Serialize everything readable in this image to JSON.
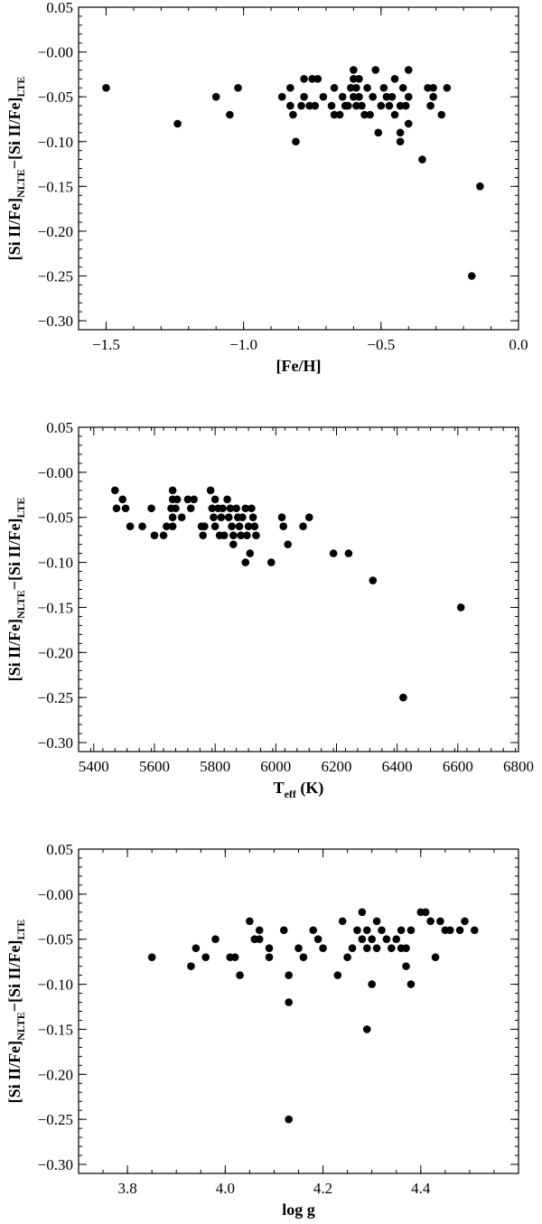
{
  "chart_data": [
    {
      "type": "scatter",
      "xlabel": "[Fe/H]",
      "ylabel": "[Si II/Fe]NLTE−[Si II/Fe]LTE",
      "xlim": [
        -1.6,
        0.0
      ],
      "ylim": [
        -0.31,
        0.05
      ],
      "x_major_ticks": [
        -1.5,
        -1.0,
        -0.5,
        0.0
      ],
      "x_tick_labels": [
        "−1.5",
        "−1.0",
        "−0.5",
        "0.0"
      ],
      "y_major_ticks": [
        0.05,
        0.0,
        -0.05,
        -0.1,
        -0.15,
        -0.2,
        -0.25,
        -0.3
      ],
      "y_tick_labels": [
        "0.05",
        "−0.00",
        "−0.05",
        "−0.10",
        "−0.15",
        "−0.20",
        "−0.25",
        "−0.30"
      ],
      "points": [
        [
          -1.5,
          -0.04
        ],
        [
          -1.24,
          -0.08
        ],
        [
          -1.1,
          -0.05
        ],
        [
          -1.05,
          -0.07
        ],
        [
          -1.02,
          -0.04
        ],
        [
          -0.86,
          -0.05
        ],
        [
          -0.83,
          -0.04
        ],
        [
          -0.83,
          -0.06
        ],
        [
          -0.82,
          -0.07
        ],
        [
          -0.81,
          -0.1
        ],
        [
          -0.79,
          -0.06
        ],
        [
          -0.78,
          -0.05
        ],
        [
          -0.78,
          -0.03
        ],
        [
          -0.76,
          -0.06
        ],
        [
          -0.75,
          -0.03
        ],
        [
          -0.74,
          -0.06
        ],
        [
          -0.73,
          -0.03
        ],
        [
          -0.71,
          -0.05
        ],
        [
          -0.68,
          -0.06
        ],
        [
          -0.67,
          -0.04
        ],
        [
          -0.67,
          -0.07
        ],
        [
          -0.65,
          -0.07
        ],
        [
          -0.64,
          -0.05
        ],
        [
          -0.63,
          -0.06
        ],
        [
          -0.62,
          -0.06
        ],
        [
          -0.61,
          -0.04
        ],
        [
          -0.6,
          -0.02
        ],
        [
          -0.6,
          -0.03
        ],
        [
          -0.6,
          -0.05
        ],
        [
          -0.59,
          -0.06
        ],
        [
          -0.59,
          -0.04
        ],
        [
          -0.58,
          -0.03
        ],
        [
          -0.58,
          -0.05
        ],
        [
          -0.57,
          -0.06
        ],
        [
          -0.56,
          -0.07
        ],
        [
          -0.55,
          -0.04
        ],
        [
          -0.54,
          -0.07
        ],
        [
          -0.53,
          -0.05
        ],
        [
          -0.52,
          -0.02
        ],
        [
          -0.51,
          -0.09
        ],
        [
          -0.5,
          -0.06
        ],
        [
          -0.49,
          -0.04
        ],
        [
          -0.48,
          -0.05
        ],
        [
          -0.47,
          -0.06
        ],
        [
          -0.46,
          -0.05
        ],
        [
          -0.45,
          -0.03
        ],
        [
          -0.45,
          -0.07
        ],
        [
          -0.43,
          -0.06
        ],
        [
          -0.43,
          -0.1
        ],
        [
          -0.43,
          -0.09
        ],
        [
          -0.42,
          -0.04
        ],
        [
          -0.41,
          -0.06
        ],
        [
          -0.4,
          -0.08
        ],
        [
          -0.4,
          -0.05
        ],
        [
          -0.4,
          -0.02
        ],
        [
          -0.35,
          -0.12
        ],
        [
          -0.33,
          -0.04
        ],
        [
          -0.32,
          -0.06
        ],
        [
          -0.31,
          -0.04
        ],
        [
          -0.31,
          -0.05
        ],
        [
          -0.28,
          -0.07
        ],
        [
          -0.26,
          -0.04
        ],
        [
          -0.17,
          -0.25
        ],
        [
          -0.14,
          -0.15
        ]
      ]
    },
    {
      "type": "scatter",
      "xlabel": "Teff (K)",
      "ylabel": "[Si II/Fe]NLTE−[Si II/Fe]LTE",
      "xlim": [
        5350,
        6800
      ],
      "ylim": [
        -0.31,
        0.05
      ],
      "x_major_ticks": [
        5400,
        5600,
        5800,
        6000,
        6200,
        6400,
        6600,
        6800
      ],
      "x_tick_labels": [
        "5400",
        "5600",
        "5800",
        "6000",
        "6200",
        "6400",
        "6600",
        "6800"
      ],
      "y_major_ticks": [
        0.05,
        0.0,
        -0.05,
        -0.1,
        -0.15,
        -0.2,
        -0.25,
        -0.3
      ],
      "y_tick_labels": [
        "0.05",
        "−0.00",
        "−0.05",
        "−0.10",
        "−0.15",
        "−0.20",
        "−0.25",
        "−0.30"
      ],
      "points": [
        [
          5470,
          -0.02
        ],
        [
          5475,
          -0.04
        ],
        [
          5495,
          -0.03
        ],
        [
          5505,
          -0.04
        ],
        [
          5520,
          -0.06
        ],
        [
          5560,
          -0.06
        ],
        [
          5590,
          -0.04
        ],
        [
          5600,
          -0.07
        ],
        [
          5630,
          -0.07
        ],
        [
          5640,
          -0.06
        ],
        [
          5655,
          -0.04
        ],
        [
          5660,
          -0.02
        ],
        [
          5660,
          -0.03
        ],
        [
          5660,
          -0.05
        ],
        [
          5660,
          -0.06
        ],
        [
          5670,
          -0.04
        ],
        [
          5675,
          -0.03
        ],
        [
          5690,
          -0.05
        ],
        [
          5710,
          -0.03
        ],
        [
          5720,
          -0.04
        ],
        [
          5730,
          -0.03
        ],
        [
          5755,
          -0.06
        ],
        [
          5760,
          -0.07
        ],
        [
          5765,
          -0.06
        ],
        [
          5785,
          -0.02
        ],
        [
          5790,
          -0.04
        ],
        [
          5795,
          -0.05
        ],
        [
          5800,
          -0.03
        ],
        [
          5800,
          -0.06
        ],
        [
          5810,
          -0.04
        ],
        [
          5815,
          -0.07
        ],
        [
          5820,
          -0.05
        ],
        [
          5825,
          -0.04
        ],
        [
          5830,
          -0.07
        ],
        [
          5840,
          -0.03
        ],
        [
          5845,
          -0.05
        ],
        [
          5850,
          -0.04
        ],
        [
          5855,
          -0.06
        ],
        [
          5860,
          -0.07
        ],
        [
          5860,
          -0.08
        ],
        [
          5870,
          -0.04
        ],
        [
          5875,
          -0.05
        ],
        [
          5880,
          -0.06
        ],
        [
          5885,
          -0.07
        ],
        [
          5890,
          -0.05
        ],
        [
          5900,
          -0.04
        ],
        [
          5900,
          -0.1
        ],
        [
          5905,
          -0.07
        ],
        [
          5910,
          -0.06
        ],
        [
          5915,
          -0.09
        ],
        [
          5920,
          -0.04
        ],
        [
          5925,
          -0.05
        ],
        [
          5930,
          -0.06
        ],
        [
          5935,
          -0.07
        ],
        [
          5985,
          -0.1
        ],
        [
          6020,
          -0.05
        ],
        [
          6025,
          -0.06
        ],
        [
          6040,
          -0.08
        ],
        [
          6090,
          -0.06
        ],
        [
          6110,
          -0.05
        ],
        [
          6190,
          -0.09
        ],
        [
          6240,
          -0.09
        ],
        [
          6320,
          -0.12
        ],
        [
          6420,
          -0.25
        ],
        [
          6610,
          -0.15
        ]
      ]
    },
    {
      "type": "scatter",
      "xlabel": "log g",
      "ylabel": "[Si II/Fe]NLTE−[Si II/Fe]LTE",
      "xlim": [
        3.7,
        4.6
      ],
      "ylim": [
        -0.31,
        0.05
      ],
      "x_major_ticks": [
        3.8,
        4.0,
        4.2,
        4.4
      ],
      "x_tick_labels": [
        "3.8",
        "4.0",
        "4.2",
        "4.4"
      ],
      "y_major_ticks": [
        0.05,
        0.0,
        -0.05,
        -0.1,
        -0.15,
        -0.2,
        -0.25,
        -0.3
      ],
      "y_tick_labels": [
        "0.05",
        "−0.00",
        "−0.05",
        "−0.10",
        "−0.15",
        "−0.20",
        "−0.25",
        "−0.30"
      ],
      "points": [
        [
          3.85,
          -0.07
        ],
        [
          3.93,
          -0.08
        ],
        [
          3.94,
          -0.06
        ],
        [
          3.96,
          -0.07
        ],
        [
          3.98,
          -0.05
        ],
        [
          4.01,
          -0.07
        ],
        [
          4.02,
          -0.07
        ],
        [
          4.03,
          -0.09
        ],
        [
          4.05,
          -0.03
        ],
        [
          4.06,
          -0.05
        ],
        [
          4.07,
          -0.05
        ],
        [
          4.07,
          -0.04
        ],
        [
          4.09,
          -0.06
        ],
        [
          4.09,
          -0.07
        ],
        [
          4.12,
          -0.04
        ],
        [
          4.13,
          -0.09
        ],
        [
          4.13,
          -0.12
        ],
        [
          4.13,
          -0.25
        ],
        [
          4.15,
          -0.06
        ],
        [
          4.16,
          -0.07
        ],
        [
          4.18,
          -0.04
        ],
        [
          4.19,
          -0.05
        ],
        [
          4.2,
          -0.06
        ],
        [
          4.23,
          -0.09
        ],
        [
          4.24,
          -0.03
        ],
        [
          4.25,
          -0.07
        ],
        [
          4.26,
          -0.06
        ],
        [
          4.27,
          -0.04
        ],
        [
          4.28,
          -0.05
        ],
        [
          4.28,
          -0.02
        ],
        [
          4.29,
          -0.04
        ],
        [
          4.29,
          -0.06
        ],
        [
          4.29,
          -0.15
        ],
        [
          4.3,
          -0.1
        ],
        [
          4.3,
          -0.05
        ],
        [
          4.31,
          -0.06
        ],
        [
          4.31,
          -0.03
        ],
        [
          4.32,
          -0.04
        ],
        [
          4.33,
          -0.05
        ],
        [
          4.34,
          -0.06
        ],
        [
          4.35,
          -0.05
        ],
        [
          4.36,
          -0.04
        ],
        [
          4.36,
          -0.06
        ],
        [
          4.37,
          -0.08
        ],
        [
          4.37,
          -0.06
        ],
        [
          4.38,
          -0.04
        ],
        [
          4.38,
          -0.1
        ],
        [
          4.4,
          -0.02
        ],
        [
          4.41,
          -0.02
        ],
        [
          4.42,
          -0.03
        ],
        [
          4.43,
          -0.07
        ],
        [
          4.44,
          -0.03
        ],
        [
          4.45,
          -0.04
        ],
        [
          4.46,
          -0.04
        ],
        [
          4.48,
          -0.04
        ],
        [
          4.49,
          -0.03
        ],
        [
          4.51,
          -0.04
        ]
      ]
    }
  ]
}
